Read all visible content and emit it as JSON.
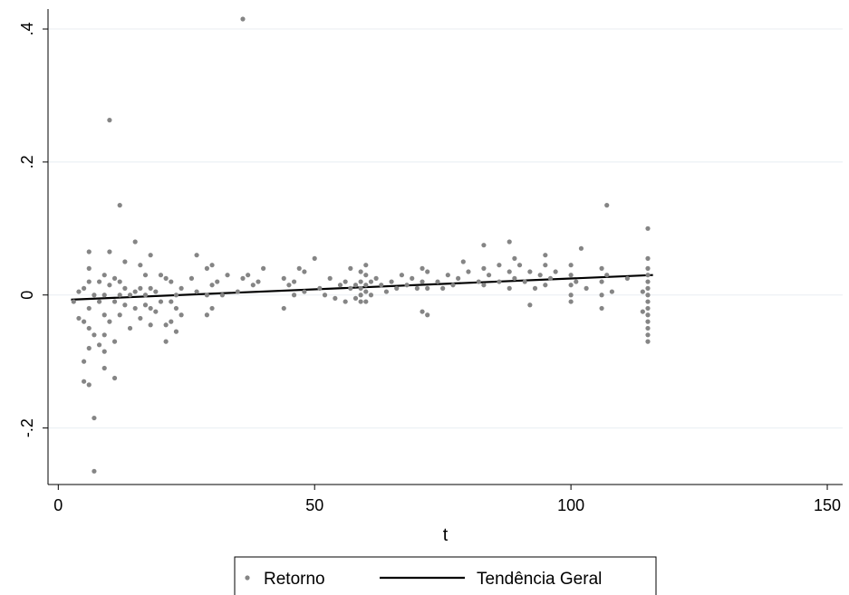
{
  "chart_data": {
    "type": "scatter",
    "xlabel": "t",
    "ylabel": "",
    "xlim": [
      -2,
      153
    ],
    "ylim": [
      -0.285,
      0.43
    ],
    "xticks": [
      0,
      50,
      100,
      150
    ],
    "xtick_labels": [
      "0",
      "50",
      "100",
      "150"
    ],
    "yticks": [
      -0.2,
      0,
      0.2,
      0.4
    ],
    "ytick_labels": [
      "-.2",
      "0",
      ".2",
      ".4"
    ],
    "grid": true,
    "legend_position": "bottom",
    "colors": {
      "points": "#858585",
      "trend": "#000000",
      "grid": "#e8eef2"
    },
    "series": [
      {
        "name": "Retorno",
        "kind": "scatter",
        "points": [
          [
            3,
            -0.01
          ],
          [
            4,
            0.005
          ],
          [
            4,
            -0.035
          ],
          [
            5,
            0.01
          ],
          [
            5,
            -0.04
          ],
          [
            5,
            -0.1
          ],
          [
            5,
            -0.13
          ],
          [
            6,
            0.065
          ],
          [
            6,
            0.04
          ],
          [
            6,
            0.02
          ],
          [
            6,
            -0.02
          ],
          [
            6,
            -0.05
          ],
          [
            6,
            -0.08
          ],
          [
            6,
            -0.135
          ],
          [
            7,
            0.0
          ],
          [
            7,
            -0.06
          ],
          [
            7,
            -0.265
          ],
          [
            7,
            -0.185
          ],
          [
            8,
            0.02
          ],
          [
            8,
            -0.01
          ],
          [
            8,
            -0.075
          ],
          [
            9,
            0.03
          ],
          [
            9,
            0.0
          ],
          [
            9,
            -0.03
          ],
          [
            9,
            -0.06
          ],
          [
            9,
            -0.085
          ],
          [
            9,
            -0.11
          ],
          [
            10,
            0.065
          ],
          [
            10,
            0.015
          ],
          [
            10,
            -0.04
          ],
          [
            10,
            0.263
          ],
          [
            11,
            0.025
          ],
          [
            11,
            -0.01
          ],
          [
            11,
            -0.07
          ],
          [
            11,
            -0.125
          ],
          [
            12,
            0.02
          ],
          [
            12,
            0.0
          ],
          [
            12,
            -0.03
          ],
          [
            12,
            0.135
          ],
          [
            13,
            0.05
          ],
          [
            13,
            0.01
          ],
          [
            13,
            -0.015
          ],
          [
            14,
            0.0
          ],
          [
            14,
            -0.05
          ],
          [
            15,
            0.08
          ],
          [
            15,
            0.005
          ],
          [
            15,
            -0.02
          ],
          [
            16,
            0.045
          ],
          [
            16,
            0.01
          ],
          [
            16,
            -0.035
          ],
          [
            17,
            0.03
          ],
          [
            17,
            0.0
          ],
          [
            17,
            -0.015
          ],
          [
            18,
            0.06
          ],
          [
            18,
            0.01
          ],
          [
            18,
            -0.02
          ],
          [
            18,
            -0.045
          ],
          [
            19,
            0.005
          ],
          [
            19,
            -0.025
          ],
          [
            20,
            0.03
          ],
          [
            20,
            -0.01
          ],
          [
            21,
            0.025
          ],
          [
            21,
            -0.07
          ],
          [
            21,
            -0.045
          ],
          [
            22,
            0.02
          ],
          [
            22,
            -0.01
          ],
          [
            22,
            -0.04
          ],
          [
            23,
            0.0
          ],
          [
            23,
            -0.02
          ],
          [
            23,
            -0.055
          ],
          [
            24,
            0.01
          ],
          [
            24,
            -0.03
          ],
          [
            26,
            0.025
          ],
          [
            27,
            0.06
          ],
          [
            27,
            0.005
          ],
          [
            29,
            0.04
          ],
          [
            29,
            0.0
          ],
          [
            29,
            -0.03
          ],
          [
            30,
            -0.02
          ],
          [
            30,
            0.015
          ],
          [
            30,
            0.045
          ],
          [
            31,
            0.02
          ],
          [
            32,
            0.0
          ],
          [
            33,
            0.03
          ],
          [
            35,
            0.005
          ],
          [
            36,
            0.025
          ],
          [
            36,
            0.415
          ],
          [
            37,
            0.03
          ],
          [
            38,
            0.015
          ],
          [
            39,
            0.02
          ],
          [
            40,
            0.04
          ],
          [
            44,
            0.025
          ],
          [
            44,
            -0.02
          ],
          [
            45,
            0.015
          ],
          [
            46,
            0.0
          ],
          [
            46,
            0.02
          ],
          [
            47,
            0.04
          ],
          [
            48,
            0.035
          ],
          [
            48,
            0.005
          ],
          [
            50,
            0.055
          ],
          [
            51,
            0.01
          ],
          [
            52,
            0.0
          ],
          [
            53,
            0.025
          ],
          [
            54,
            -0.005
          ],
          [
            55,
            0.015
          ],
          [
            56,
            0.02
          ],
          [
            56,
            -0.01
          ],
          [
            57,
            0.04
          ],
          [
            57,
            0.01
          ],
          [
            58,
            0.015
          ],
          [
            58,
            -0.005
          ],
          [
            59,
            0.035
          ],
          [
            59,
            0.02
          ],
          [
            59,
            0.01
          ],
          [
            59,
            0.0
          ],
          [
            59,
            -0.01
          ],
          [
            60,
            0.045
          ],
          [
            60,
            0.03
          ],
          [
            60,
            0.015
          ],
          [
            60,
            0.005
          ],
          [
            60,
            -0.01
          ],
          [
            61,
            0.02
          ],
          [
            61,
            0.0
          ],
          [
            62,
            0.025
          ],
          [
            63,
            0.015
          ],
          [
            64,
            0.005
          ],
          [
            65,
            0.02
          ],
          [
            66,
            0.01
          ],
          [
            67,
            0.03
          ],
          [
            68,
            0.015
          ],
          [
            69,
            0.025
          ],
          [
            70,
            0.01
          ],
          [
            71,
            0.04
          ],
          [
            71,
            0.02
          ],
          [
            71,
            -0.025
          ],
          [
            72,
            0.01
          ],
          [
            72,
            -0.03
          ],
          [
            72,
            0.035
          ],
          [
            74,
            0.02
          ],
          [
            75,
            0.01
          ],
          [
            76,
            0.03
          ],
          [
            77,
            0.015
          ],
          [
            78,
            0.025
          ],
          [
            79,
            0.05
          ],
          [
            80,
            0.035
          ],
          [
            82,
            0.02
          ],
          [
            83,
            0.075
          ],
          [
            83,
            0.04
          ],
          [
            83,
            0.015
          ],
          [
            84,
            0.03
          ],
          [
            86,
            0.045
          ],
          [
            86,
            0.02
          ],
          [
            88,
            0.08
          ],
          [
            88,
            0.035
          ],
          [
            88,
            0.01
          ],
          [
            89,
            0.055
          ],
          [
            89,
            0.025
          ],
          [
            90,
            0.045
          ],
          [
            91,
            0.02
          ],
          [
            92,
            0.035
          ],
          [
            92,
            -0.015
          ],
          [
            93,
            0.01
          ],
          [
            94,
            0.03
          ],
          [
            95,
            0.06
          ],
          [
            95,
            0.045
          ],
          [
            95,
            0.015
          ],
          [
            96,
            0.025
          ],
          [
            97,
            0.035
          ],
          [
            100,
            0.045
          ],
          [
            100,
            0.03
          ],
          [
            100,
            0.015
          ],
          [
            100,
            0.0
          ],
          [
            100,
            -0.01
          ],
          [
            101,
            0.02
          ],
          [
            102,
            0.07
          ],
          [
            103,
            0.01
          ],
          [
            106,
            0.04
          ],
          [
            106,
            0.02
          ],
          [
            106,
            0.0
          ],
          [
            106,
            -0.02
          ],
          [
            107,
            0.135
          ],
          [
            107,
            0.03
          ],
          [
            108,
            0.005
          ],
          [
            111,
            0.025
          ],
          [
            114,
            -0.025
          ],
          [
            114,
            0.005
          ],
          [
            115,
            0.1
          ],
          [
            115,
            0.055
          ],
          [
            115,
            0.04
          ],
          [
            115,
            0.03
          ],
          [
            115,
            0.02
          ],
          [
            115,
            0.01
          ],
          [
            115,
            0.0
          ],
          [
            115,
            -0.01
          ],
          [
            115,
            -0.02
          ],
          [
            115,
            -0.03
          ],
          [
            115,
            -0.04
          ],
          [
            115,
            -0.05
          ],
          [
            115,
            -0.06
          ],
          [
            115,
            -0.07
          ]
        ]
      },
      {
        "name": "Tendência Geral",
        "kind": "line",
        "points": [
          [
            2.5,
            -0.007
          ],
          [
            116,
            0.03
          ]
        ]
      }
    ]
  }
}
